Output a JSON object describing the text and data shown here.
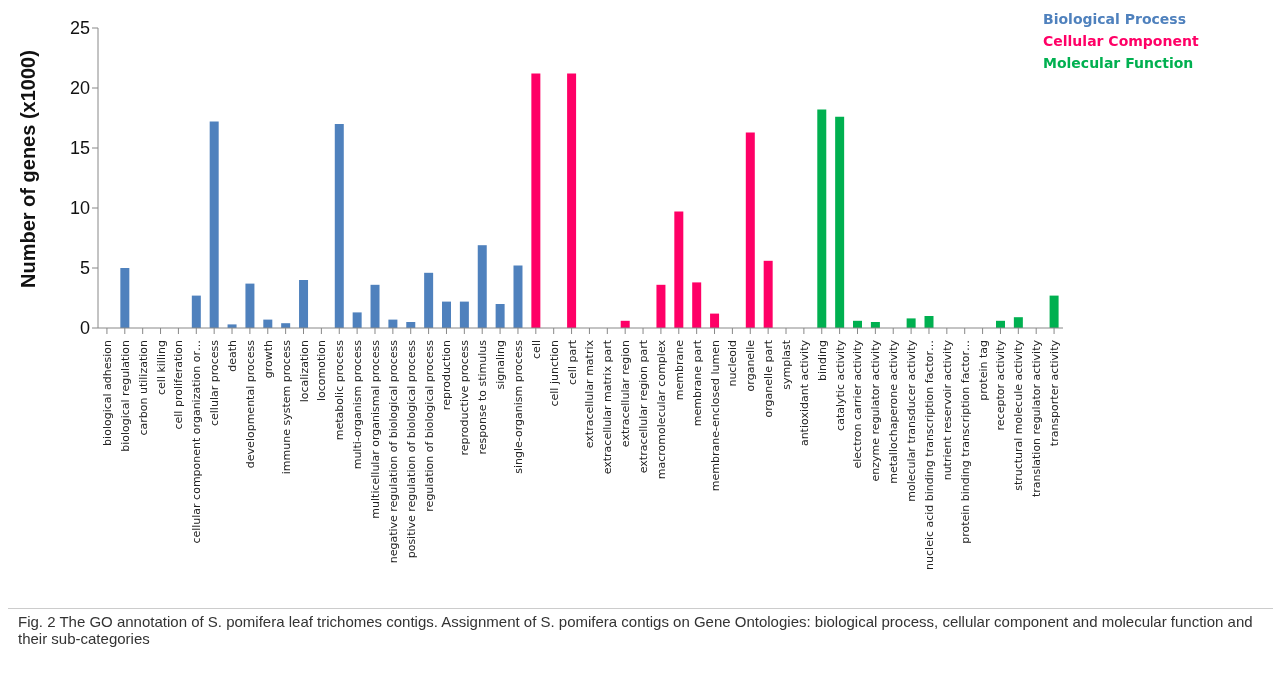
{
  "chart_data": {
    "type": "bar",
    "ylabel": "Number of genes (x1000)",
    "categories": [
      "biological adhesion",
      "biological regulation",
      "carbon utilization",
      "cell killing",
      "cell proliferation",
      "cellular component organization or…",
      "cellular process",
      "death",
      "developmental process",
      "growth",
      "immune system process",
      "localization",
      "locomotion",
      "metabolic process",
      "multi-organism process",
      "multicellular organismal process",
      "negative regulation of biological process",
      "positive regulation of biological process",
      "regulation of biological process",
      "reproduction",
      "reproductive process",
      "response to stimulus",
      "signaling",
      "single-organism process",
      "cell",
      "cell junction",
      "cell part",
      "extracellular matrix",
      "extracellular matrix part",
      "extracellular region",
      "extracellular region part",
      "macromolecular complex",
      "membrane",
      "membrane part",
      "membrane-enclosed lumen",
      "nucleoid",
      "organelle",
      "organelle part",
      "symplast",
      "antioxidant activity",
      "binding",
      "catalytic activity",
      "electron carrier activity",
      "enzyme regulator activity",
      "metallochaperone activity",
      "molecular transducer activity",
      "nucleic acid binding transcription factor…",
      "nutrient reservoir activity",
      "protein binding transcription factor…",
      "protein tag",
      "receptor activity",
      "structural molecule activity",
      "translation regulator activity",
      "transporter activity"
    ],
    "series": [
      {
        "name": "Biological Process",
        "color": "#4f81bd",
        "values": [
          0,
          5.0,
          0,
          0,
          null,
          2.7,
          17.2,
          0.3,
          3.7,
          0.7,
          0.4,
          4.0,
          0,
          17.0,
          1.3,
          3.6,
          0.7,
          0.5,
          4.6,
          2.2,
          2.2,
          6.9,
          2.0,
          5.2,
          null,
          null,
          null,
          null,
          null,
          null,
          null,
          null,
          null,
          null,
          null,
          null,
          null,
          null,
          null,
          null,
          null,
          null,
          null,
          null,
          null,
          null,
          null,
          null,
          null,
          null,
          null,
          null,
          null,
          null
        ]
      },
      {
        "name": "Cellular Component",
        "color": "#ff0066",
        "values": [
          null,
          null,
          null,
          null,
          null,
          null,
          null,
          null,
          null,
          null,
          null,
          null,
          null,
          null,
          null,
          null,
          null,
          null,
          null,
          null,
          null,
          null,
          null,
          null,
          21.2,
          0,
          21.2,
          0,
          0,
          0.6,
          0,
          3.6,
          9.7,
          3.8,
          1.2,
          null,
          16.3,
          5.6,
          0,
          null,
          null,
          null,
          null,
          null,
          null,
          null,
          null,
          null,
          null,
          null,
          null,
          null,
          null,
          null
        ]
      },
      {
        "name": "Molecular Function",
        "color": "#00b050",
        "values": [
          null,
          null,
          null,
          null,
          null,
          null,
          null,
          null,
          null,
          null,
          null,
          null,
          null,
          null,
          null,
          null,
          null,
          null,
          null,
          null,
          null,
          null,
          null,
          null,
          null,
          null,
          null,
          null,
          null,
          null,
          null,
          null,
          null,
          null,
          null,
          null,
          null,
          null,
          null,
          null,
          18.2,
          17.6,
          0.6,
          0.5,
          0,
          0.8,
          1.0,
          0,
          0,
          0,
          0.6,
          0.9,
          0,
          2.7
        ]
      }
    ],
    "ylim": [
      0,
      25
    ],
    "yticks": [
      0,
      5,
      10,
      15,
      20,
      25
    ],
    "grid": false,
    "legend": "top right",
    "annotations": [
      "Fig. 2 The GO annotation of S. pomifera leaf trichomes contigs. Assignment of S. pomifera contigs on Gene Ontologies: biological process, cellular component and molecular function and their sub-categories"
    ]
  }
}
